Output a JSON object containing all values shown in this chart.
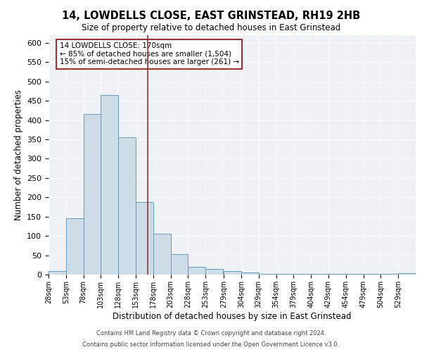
{
  "title": "14, LOWDELLS CLOSE, EAST GRINSTEAD, RH19 2HB",
  "subtitle": "Size of property relative to detached houses in East Grinstead",
  "xlabel": "Distribution of detached houses by size in East Grinstead",
  "ylabel": "Number of detached properties",
  "bin_labels": [
    "28sqm",
    "53sqm",
    "78sqm",
    "103sqm",
    "128sqm",
    "153sqm",
    "178sqm",
    "203sqm",
    "228sqm",
    "253sqm",
    "279sqm",
    "304sqm",
    "329sqm",
    "354sqm",
    "379sqm",
    "404sqm",
    "429sqm",
    "454sqm",
    "479sqm",
    "504sqm",
    "529sqm"
  ],
  "bin_edges": [
    28,
    53,
    78,
    103,
    128,
    153,
    178,
    203,
    228,
    253,
    279,
    304,
    329,
    354,
    379,
    404,
    429,
    454,
    479,
    504,
    529
  ],
  "bar_heights": [
    10,
    145,
    415,
    465,
    355,
    188,
    105,
    53,
    20,
    15,
    10,
    5,
    2,
    2,
    2,
    2,
    1,
    1,
    1,
    1,
    3
  ],
  "bar_color": "#ccdde8",
  "bar_edge_color": "#6699bb",
  "property_size": 170,
  "marker_line_color": "#993333",
  "annotation_box_color": "#993333",
  "ylim": [
    0,
    620
  ],
  "yticks": [
    0,
    50,
    100,
    150,
    200,
    250,
    300,
    350,
    400,
    450,
    500,
    550,
    600
  ],
  "annotation_title": "14 LOWDELLS CLOSE: 170sqm",
  "annotation_line1": "← 85% of detached houses are smaller (1,504)",
  "annotation_line2": "15% of semi-detached houses are larger (261) →",
  "footer1": "Contains HM Land Registry data © Crown copyright and database right 2024.",
  "footer2": "Contains public sector information licensed under the Open Government Licence v3.0.",
  "background_color": "#eef2f6"
}
